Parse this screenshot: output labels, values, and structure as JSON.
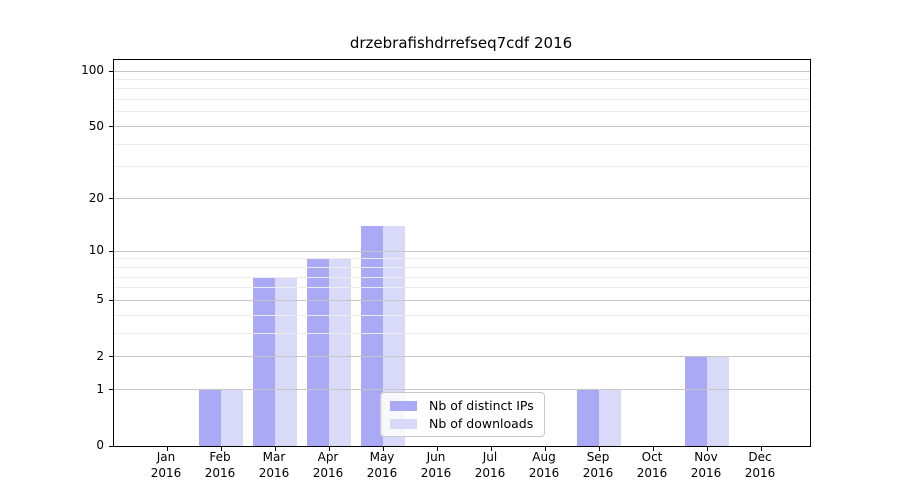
{
  "title": "drzebrafishdrrefseq7cdf 2016",
  "chart_data": {
    "type": "bar",
    "title": "drzebrafishdrrefseq7cdf 2016",
    "categories": [
      "Jan",
      "Feb",
      "Mar",
      "Apr",
      "May",
      "Jun",
      "Jul",
      "Aug",
      "Sep",
      "Oct",
      "Nov",
      "Dec"
    ],
    "category_year": "2016",
    "series": [
      {
        "name": "Nb of distinct IPs",
        "color": "#A9A9F6",
        "values": [
          0,
          1,
          7,
          9,
          14,
          0,
          0,
          0,
          1,
          0,
          2,
          0
        ]
      },
      {
        "name": "Nb of downloads",
        "color": "#D9D9F8",
        "values": [
          0,
          1,
          7,
          9,
          14,
          0,
          0,
          0,
          1,
          0,
          2,
          0
        ]
      }
    ],
    "xlabel": "",
    "ylabel": "",
    "y_axis": {
      "scale": "log10(1+x)",
      "major_ticks": [
        0,
        1,
        2,
        5,
        10,
        20,
        50,
        100
      ],
      "major_tick_labels": [
        "0",
        "1",
        "2",
        "5",
        "10",
        "20",
        "50",
        "100"
      ],
      "minor_gridlines": [
        3,
        4,
        6,
        7,
        8,
        9,
        30,
        40,
        60,
        70,
        80,
        90
      ],
      "ylim_top_value": 114
    },
    "grid": "horizontal",
    "legend": {
      "position": "lower-center-inside",
      "entries": [
        "Nb of distinct IPs",
        "Nb of downloads"
      ]
    }
  },
  "colors": {
    "bar_dark": "#A9A9F6",
    "bar_light": "#D9D9F8",
    "grid_major": "#c6c6c6",
    "grid_minor": "#ececec",
    "spine": "#000000",
    "legend_border": "#c9c9c9"
  }
}
